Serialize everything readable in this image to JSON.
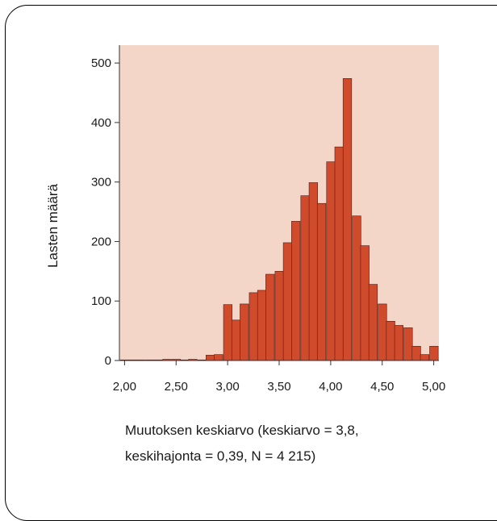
{
  "chart_data": {
    "type": "bar",
    "ylabel": "Lasten määrä",
    "xlabel_lines": [
      "Muutoksen keskiarvo (keskiarvo = 3,8,",
      "keskihajonta = 0,39, N = 4 215)"
    ],
    "x_ticks": [
      "2,00",
      "2,50",
      "3,00",
      "3,50",
      "4,00",
      "4,50",
      "5,00"
    ],
    "y_ticks": [
      "0",
      "100",
      "200",
      "300",
      "400",
      "500"
    ],
    "xlim": [
      1.95,
      5.05
    ],
    "ylim": [
      0,
      530
    ],
    "bin_width": 0.0833,
    "bin_starts": [
      1.96,
      2.04,
      2.12,
      2.21,
      2.29,
      2.37,
      2.46,
      2.54,
      2.62,
      2.71,
      2.79,
      2.87,
      2.96,
      3.04,
      3.12,
      3.21,
      3.29,
      3.37,
      3.46,
      3.54,
      3.62,
      3.71,
      3.79,
      3.87,
      3.96,
      4.04,
      4.12,
      4.21,
      4.29,
      4.37,
      4.46,
      4.54,
      4.62,
      4.71,
      4.79,
      4.87,
      4.96
    ],
    "values": [
      1,
      1,
      1,
      1,
      1,
      2,
      2,
      1,
      2,
      1,
      9,
      10,
      94,
      68,
      95,
      114,
      118,
      145,
      150,
      198,
      234,
      277,
      299,
      264,
      334,
      359,
      474,
      243,
      193,
      128,
      95,
      66,
      59,
      55,
      37,
      26,
      23
    ],
    "extra_bins": [
      {
        "x": 4.79,
        "y": 24
      },
      {
        "x": 4.87,
        "y": 10
      },
      {
        "x": 4.96,
        "y": 24
      }
    ],
    "colors": {
      "bar": "#d04a2c",
      "bar_edge": "#5a1c0e",
      "plot_bg": "#f4d6c9"
    }
  }
}
